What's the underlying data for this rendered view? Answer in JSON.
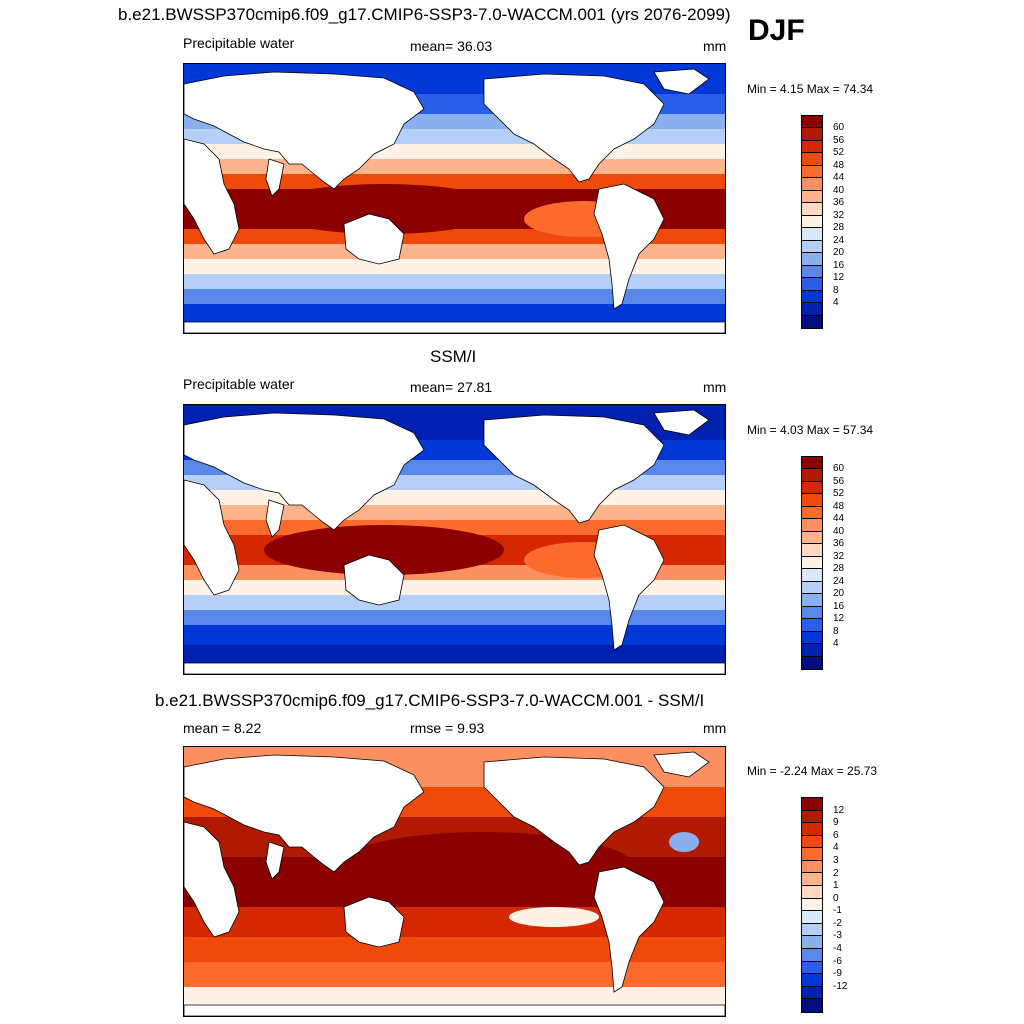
{
  "header": {
    "title": "b.e21.BWSSP370cmip6.f09_g17.CMIP6-SSP3-7.0-WACCM.001 (yrs 2076-2099)",
    "season": "DJF"
  },
  "panels": [
    {
      "title": "",
      "left_label": "Precipitable water",
      "center_label": "mean=  36.03",
      "right_label": "mm",
      "minmax": "Min =   4.15 Max =  74.34",
      "kind": "model"
    },
    {
      "title": "SSM/I",
      "left_label": "Precipitable water",
      "center_label": "mean=  27.81",
      "right_label": "mm",
      "minmax": "Min =   4.03 Max =  57.34",
      "kind": "obs"
    },
    {
      "title": "b.e21.BWSSP370cmip6.f09_g17.CMIP6-SSP3-7.0-WACCM.001 - SSM/I",
      "left_label": "mean =   8.22",
      "center_label": "rmse =   9.93",
      "right_label": "mm",
      "minmax": "Min =  -2.24 Max =  25.73",
      "kind": "diff"
    }
  ],
  "colorbars": {
    "field": {
      "labels": [
        "60",
        "56",
        "52",
        "48",
        "44",
        "40",
        "36",
        "32",
        "28",
        "24",
        "20",
        "16",
        "12",
        "8",
        "4"
      ],
      "colors": [
        "#8b0000",
        "#b01a00",
        "#d62800",
        "#f04a0a",
        "#fb6b2e",
        "#fc9060",
        "#fdb48c",
        "#fdd9c1",
        "#fff3e8",
        "#dbe8fb",
        "#b5cff7",
        "#8bb0f0",
        "#5a88ea",
        "#2a5ee8",
        "#0038d8",
        "#0020b0",
        "#000e80"
      ]
    },
    "diff": {
      "labels": [
        "12",
        "9",
        "6",
        "4",
        "3",
        "2",
        "1",
        "0",
        "-1",
        "-2",
        "-3",
        "-4",
        "-6",
        "-9",
        "-12"
      ],
      "colors": [
        "#8b0000",
        "#b01a00",
        "#d62800",
        "#f04a0a",
        "#fb6b2e",
        "#fc9060",
        "#fdb48c",
        "#fdd9c1",
        "#fff3e8",
        "#dbe8fb",
        "#b5cff7",
        "#8bb0f0",
        "#5a88ea",
        "#2a5ee8",
        "#0038d8",
        "#0020b0",
        "#000e80"
      ]
    }
  }
}
